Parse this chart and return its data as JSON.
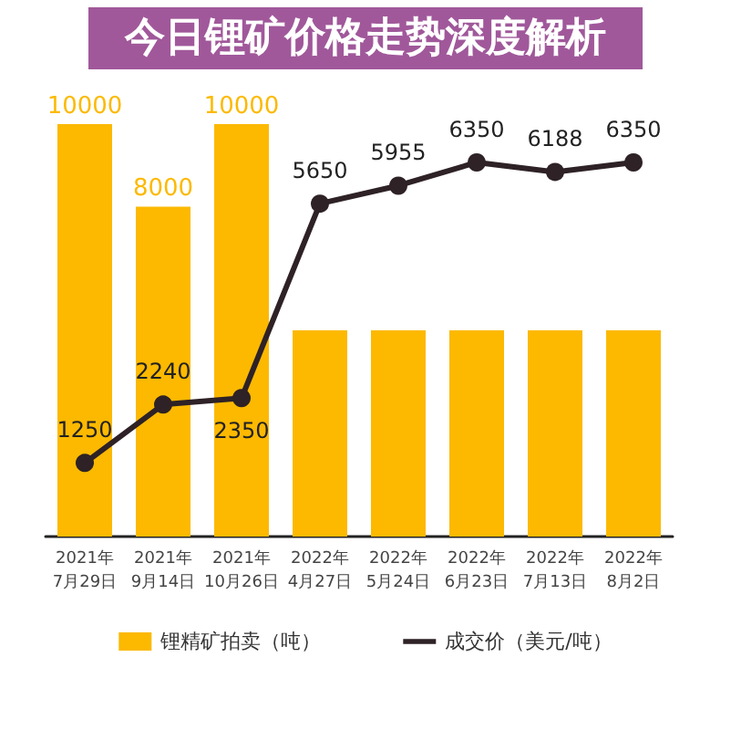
{
  "chart_data": {
    "type": "bar",
    "title": "今日锂矿价格走势深度解析",
    "categories": [
      "2021年\n7月29日",
      "2021年\n9月14日",
      "2021年\n10月26日",
      "2022年\n4月27日",
      "2022年\n5月24日",
      "2022年\n6月23日",
      "2022年\n7月13日",
      "2022年\n8月2日"
    ],
    "series": [
      {
        "name": "锂精矿拍卖（吨）",
        "color": "#fcb900",
        "values": [
          10000,
          8000,
          10000,
          5000,
          5000,
          5000,
          5000,
          5000
        ],
        "value_labels": [
          "10000",
          "8000",
          "10000",
          null,
          null,
          null,
          null,
          null
        ]
      },
      {
        "name": "成交价（美元/吨）",
        "type": "line",
        "axis": "y2",
        "color": "#2e2226",
        "values": [
          1250,
          2240,
          2350,
          5650,
          5955,
          6350,
          6188,
          6350
        ],
        "value_labels": [
          "1250",
          "2240",
          "2350",
          "5650",
          "5955",
          "6350",
          "6188",
          "6350"
        ]
      }
    ],
    "legend": "bottom",
    "grid": false,
    "marker": "circle",
    "line_style": "solid",
    "tick_labels": "x"
  }
}
